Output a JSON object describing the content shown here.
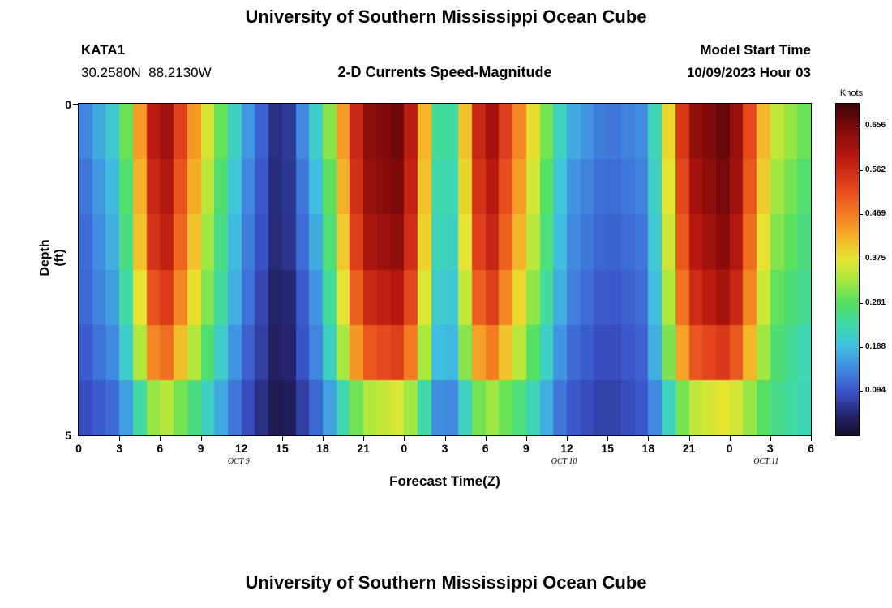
{
  "page": {
    "title_top": "University of Southern Mississippi Ocean Cube",
    "title_bottom": "University of Southern Mississippi Ocean Cube"
  },
  "header": {
    "station_id": "KATA1",
    "coordinates": "30.2580N  88.2130W",
    "plot_title": "2-D Currents Speed-Magnitude",
    "model_start_label": "Model Start Time",
    "model_start_value": "10/09/2023 Hour 03"
  },
  "axes": {
    "y_label": "Depth (ft)",
    "y_ticks": [
      "0",
      "5"
    ],
    "x_label": "Forecast Time(Z)",
    "x_ticks": [
      "0",
      "3",
      "6",
      "9",
      "12",
      "15",
      "18",
      "21",
      "0",
      "3",
      "6",
      "9",
      "12",
      "15",
      "18",
      "21",
      "0",
      "3",
      "6"
    ],
    "date_labels": [
      {
        "text": "OCT 9",
        "hour": 11.8
      },
      {
        "text": "OCT 10",
        "hour": 35.8
      },
      {
        "text": "OCT 11",
        "hour": 50.7
      }
    ]
  },
  "colorbar": {
    "title": "Knots",
    "tick_labels": [
      "0.656",
      "0.562",
      "0.469",
      "0.375",
      "0.281",
      "0.188",
      "0.094"
    ],
    "min": 0,
    "max": 0.703,
    "stops": [
      [
        0.0,
        "#140f2b"
      ],
      [
        0.06,
        "#23246b"
      ],
      [
        0.13,
        "#3a53c8"
      ],
      [
        0.2,
        "#4189e0"
      ],
      [
        0.27,
        "#3fc0e0"
      ],
      [
        0.33,
        "#3fd9b0"
      ],
      [
        0.4,
        "#55e060"
      ],
      [
        0.47,
        "#a8e83e"
      ],
      [
        0.53,
        "#e6e632"
      ],
      [
        0.6,
        "#f5b028"
      ],
      [
        0.67,
        "#f47a22"
      ],
      [
        0.75,
        "#e2431c"
      ],
      [
        0.84,
        "#b81810"
      ],
      [
        0.93,
        "#7c0a0a"
      ],
      [
        1.0,
        "#3a0406"
      ]
    ]
  },
  "chart_data": {
    "type": "heatmap",
    "title": "2-D Currents Speed-Magnitude",
    "xlabel": "Forecast Time(Z)",
    "ylabel": "Depth (ft)",
    "value_units": "Knots",
    "value_range": [
      0,
      0.703
    ],
    "x_hours": [
      0,
      3,
      6,
      9,
      12,
      15,
      18,
      21,
      24,
      27,
      30,
      33,
      36,
      39,
      42,
      45,
      48,
      51,
      54
    ],
    "x_tick_labels": [
      "0",
      "3",
      "6",
      "9",
      "12",
      "15",
      "18",
      "21",
      "0",
      "3",
      "6",
      "9",
      "12",
      "15",
      "18",
      "21",
      "0",
      "3",
      "6"
    ],
    "x_dates": [
      "OCT 9",
      "OCT 10",
      "OCT 11"
    ],
    "depth_range_ft": [
      0,
      5
    ],
    "n_depth_rows": 6,
    "values": [
      [
        0.12,
        0.22,
        0.66,
        0.4,
        0.18,
        0.03,
        0.25,
        0.63,
        0.67,
        0.16,
        0.65,
        0.42,
        0.18,
        0.12,
        0.15,
        0.62,
        0.68,
        0.36,
        0.28
      ],
      [
        0.11,
        0.2,
        0.64,
        0.38,
        0.16,
        0.03,
        0.22,
        0.62,
        0.66,
        0.15,
        0.63,
        0.4,
        0.16,
        0.11,
        0.14,
        0.6,
        0.67,
        0.34,
        0.26
      ],
      [
        0.1,
        0.19,
        0.62,
        0.36,
        0.15,
        0.03,
        0.2,
        0.6,
        0.64,
        0.14,
        0.61,
        0.38,
        0.15,
        0.1,
        0.13,
        0.58,
        0.65,
        0.32,
        0.25
      ],
      [
        0.1,
        0.17,
        0.58,
        0.34,
        0.14,
        0.02,
        0.18,
        0.56,
        0.6,
        0.13,
        0.57,
        0.35,
        0.14,
        0.09,
        0.12,
        0.55,
        0.62,
        0.3,
        0.24
      ],
      [
        0.09,
        0.15,
        0.52,
        0.3,
        0.12,
        0.02,
        0.16,
        0.5,
        0.54,
        0.12,
        0.5,
        0.31,
        0.12,
        0.08,
        0.11,
        0.5,
        0.55,
        0.28,
        0.22
      ],
      [
        0.08,
        0.12,
        0.36,
        0.24,
        0.1,
        0.01,
        0.13,
        0.33,
        0.37,
        0.1,
        0.34,
        0.25,
        0.1,
        0.07,
        0.1,
        0.34,
        0.38,
        0.26,
        0.22
      ]
    ]
  }
}
